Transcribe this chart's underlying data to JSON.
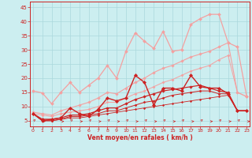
{
  "xlabel": "Vent moyen/en rafales ( km/h )",
  "bg_color": "#cceef0",
  "grid_color": "#aad8dc",
  "x": [
    0,
    1,
    2,
    3,
    4,
    5,
    6,
    7,
    8,
    9,
    10,
    11,
    12,
    13,
    14,
    15,
    16,
    17,
    18,
    19,
    20,
    21,
    22,
    23
  ],
  "series": [
    {
      "y": [
        15.5,
        14.8,
        11.0,
        15.0,
        18.5,
        15.0,
        17.5,
        20.0,
        24.5,
        20.0,
        29.5,
        36.0,
        33.0,
        30.5,
        36.5,
        29.5,
        30.0,
        39.0,
        41.0,
        42.5,
        42.5,
        32.5,
        31.0,
        13.5
      ],
      "color": "#f4a0a0",
      "lw": 0.9,
      "marker": "D",
      "ms": 2.0,
      "zorder": 2
    },
    {
      "y": [
        8.0,
        7.5,
        7.0,
        8.5,
        9.5,
        10.5,
        11.5,
        13.0,
        15.0,
        14.5,
        16.5,
        18.5,
        20.0,
        22.0,
        23.5,
        24.5,
        26.0,
        27.5,
        28.5,
        29.5,
        31.0,
        32.5,
        15.0,
        13.5
      ],
      "color": "#f4a0a0",
      "lw": 0.8,
      "marker": "D",
      "ms": 1.8,
      "zorder": 2
    },
    {
      "y": [
        7.5,
        7.0,
        6.5,
        7.5,
        8.0,
        8.5,
        9.0,
        10.0,
        11.5,
        11.5,
        13.0,
        14.5,
        15.5,
        17.0,
        18.5,
        19.5,
        21.0,
        22.5,
        23.5,
        24.5,
        26.5,
        28.0,
        15.0,
        13.5
      ],
      "color": "#f4a0a0",
      "lw": 0.7,
      "marker": "D",
      "ms": 1.6,
      "zorder": 2
    },
    {
      "y": [
        7.5,
        5.5,
        5.5,
        6.0,
        9.5,
        7.5,
        6.5,
        9.0,
        13.0,
        12.0,
        13.0,
        21.0,
        18.5,
        10.5,
        16.5,
        16.5,
        15.5,
        21.0,
        17.0,
        16.5,
        16.5,
        14.5,
        8.5,
        8.5
      ],
      "color": "#cc2222",
      "lw": 1.0,
      "marker": "D",
      "ms": 2.2,
      "zorder": 4
    },
    {
      "y": [
        7.5,
        5.0,
        5.5,
        6.0,
        7.0,
        7.0,
        7.5,
        8.5,
        9.5,
        9.5,
        11.0,
        12.5,
        13.5,
        14.5,
        15.5,
        16.0,
        16.5,
        17.0,
        17.5,
        16.5,
        15.5,
        15.0,
        8.5,
        8.5
      ],
      "color": "#cc2222",
      "lw": 0.85,
      "marker": "D",
      "ms": 1.8,
      "zorder": 3
    },
    {
      "y": [
        7.5,
        5.0,
        5.0,
        5.5,
        6.5,
        6.5,
        7.0,
        7.5,
        8.5,
        8.5,
        9.5,
        10.5,
        11.5,
        12.0,
        13.0,
        14.0,
        14.5,
        15.0,
        15.5,
        15.5,
        14.5,
        14.5,
        8.5,
        8.5
      ],
      "color": "#cc2222",
      "lw": 0.7,
      "marker": "D",
      "ms": 1.5,
      "zorder": 3
    },
    {
      "y": [
        7.5,
        5.0,
        5.0,
        5.5,
        6.0,
        6.0,
        6.5,
        7.0,
        7.5,
        8.0,
        8.5,
        9.0,
        9.5,
        10.0,
        10.5,
        11.0,
        11.5,
        12.0,
        12.5,
        13.0,
        13.5,
        14.0,
        8.5,
        8.5
      ],
      "color": "#cc2222",
      "lw": 0.6,
      "marker": "D",
      "ms": 1.3,
      "zorder": 3
    }
  ],
  "ylim": [
    3,
    47
  ],
  "xlim": [
    -0.3,
    23.3
  ],
  "yticks": [
    5,
    10,
    15,
    20,
    25,
    30,
    35,
    40,
    45
  ],
  "xticks": [
    0,
    1,
    2,
    3,
    4,
    5,
    6,
    7,
    8,
    9,
    10,
    11,
    12,
    13,
    14,
    15,
    16,
    17,
    18,
    19,
    20,
    21,
    22,
    23
  ]
}
